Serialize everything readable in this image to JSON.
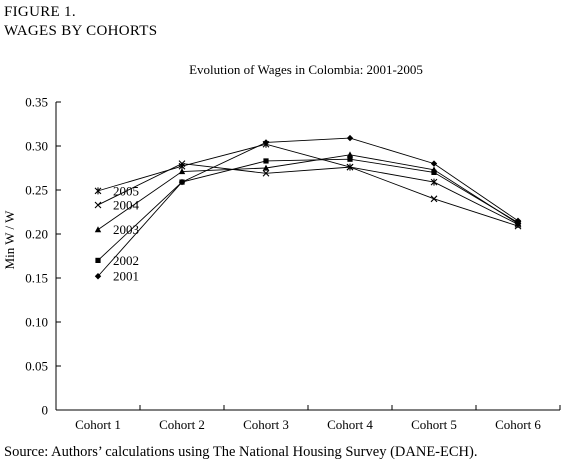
{
  "figure_label": "FIGURE 1.",
  "figure_title": "WAGES BY COHORTS",
  "source": "Source: Authors’ calculations using The National Housing Survey (DANE-ECH).",
  "chart_data": {
    "type": "line",
    "title": "Evolution of Wages in Colombia: 2001-2005",
    "xlabel": "",
    "ylabel": "Min W / W",
    "categories": [
      "Cohort 1",
      "Cohort 2",
      "Cohort 3",
      "Cohort 4",
      "Cohort 5",
      "Cohort 6"
    ],
    "ylim": [
      0,
      0.35
    ],
    "yticks": [
      "0",
      "0.05",
      "0.10",
      "0.15",
      "0.20",
      "0.25",
      "0.30",
      "0.35"
    ],
    "grid": false,
    "legend": "labels-at-start",
    "series": [
      {
        "name": "2001",
        "marker": "diamond",
        "values": [
          0.152,
          0.259,
          0.304,
          0.309,
          0.28,
          0.215
        ]
      },
      {
        "name": "2002",
        "marker": "square",
        "values": [
          0.17,
          0.259,
          0.283,
          0.285,
          0.27,
          0.213
        ]
      },
      {
        "name": "2003",
        "marker": "triangle",
        "values": [
          0.205,
          0.271,
          0.275,
          0.29,
          0.273,
          0.212
        ]
      },
      {
        "name": "2004",
        "marker": "x",
        "values": [
          0.233,
          0.28,
          0.269,
          0.276,
          0.24,
          0.209
        ]
      },
      {
        "name": "2005",
        "marker": "star",
        "values": [
          0.249,
          0.277,
          0.302,
          0.276,
          0.259,
          0.211
        ]
      }
    ]
  }
}
